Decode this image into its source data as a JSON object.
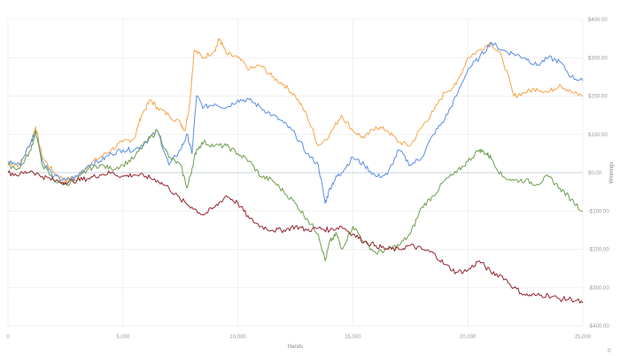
{
  "chart_data": {
    "type": "line",
    "title": "",
    "xlabel": "Hands",
    "ylabel": "Winnings",
    "xlim": [
      0,
      25000
    ],
    "ylim": [
      -400,
      400
    ],
    "x_ticks": [
      0,
      5000,
      10000,
      15000,
      20000,
      25000
    ],
    "x_tick_labels": [
      "0",
      "5,000",
      "10,000",
      "15,000",
      "20,000",
      "25,000"
    ],
    "y_ticks": [
      400,
      300,
      200,
      100,
      0,
      -100,
      -200,
      -300,
      -400
    ],
    "y_tick_labels": [
      "$400.00",
      "$300.00",
      "$200.00",
      "$100.00",
      "$0.00",
      "-$100.00",
      "-$200.00",
      "-$300.00",
      "-$400.00"
    ],
    "grid": true,
    "legend": "none",
    "baseline": 0,
    "credit": "©",
    "series": [
      {
        "color": "#f6a54a",
        "points": [
          [
            0,
            25
          ],
          [
            500,
            20
          ],
          [
            1000,
            80
          ],
          [
            1200,
            120
          ],
          [
            1500,
            40
          ],
          [
            2000,
            0
          ],
          [
            2500,
            -20
          ],
          [
            3000,
            -10
          ],
          [
            3500,
            20
          ],
          [
            4000,
            40
          ],
          [
            4500,
            60
          ],
          [
            5000,
            80
          ],
          [
            5500,
            90
          ],
          [
            5800,
            150
          ],
          [
            6200,
            190
          ],
          [
            6500,
            170
          ],
          [
            7000,
            150
          ],
          [
            7500,
            130
          ],
          [
            7700,
            110
          ],
          [
            7900,
            180
          ],
          [
            8100,
            320
          ],
          [
            8500,
            300
          ],
          [
            9000,
            320
          ],
          [
            9200,
            350
          ],
          [
            9500,
            310
          ],
          [
            10000,
            300
          ],
          [
            10500,
            270
          ],
          [
            11000,
            280
          ],
          [
            11500,
            250
          ],
          [
            12000,
            230
          ],
          [
            12500,
            200
          ],
          [
            13000,
            150
          ],
          [
            13500,
            70
          ],
          [
            14000,
            100
          ],
          [
            14500,
            150
          ],
          [
            15000,
            110
          ],
          [
            15500,
            90
          ],
          [
            16000,
            120
          ],
          [
            16500,
            110
          ],
          [
            17000,
            80
          ],
          [
            17500,
            70
          ],
          [
            18000,
            120
          ],
          [
            18500,
            160
          ],
          [
            19000,
            210
          ],
          [
            19500,
            230
          ],
          [
            20000,
            300
          ],
          [
            20500,
            320
          ],
          [
            21000,
            340
          ],
          [
            21500,
            300
          ],
          [
            22000,
            200
          ],
          [
            22500,
            210
          ],
          [
            23000,
            220
          ],
          [
            23500,
            210
          ],
          [
            24000,
            230
          ],
          [
            24500,
            210
          ],
          [
            25000,
            200
          ]
        ]
      },
      {
        "color": "#5b8ee6",
        "points": [
          [
            0,
            30
          ],
          [
            500,
            20
          ],
          [
            1000,
            80
          ],
          [
            1200,
            110
          ],
          [
            1500,
            30
          ],
          [
            2000,
            -10
          ],
          [
            2500,
            -20
          ],
          [
            3000,
            -10
          ],
          [
            3500,
            20
          ],
          [
            4000,
            30
          ],
          [
            4500,
            50
          ],
          [
            5000,
            60
          ],
          [
            5500,
            60
          ],
          [
            6000,
            80
          ],
          [
            6500,
            110
          ],
          [
            7000,
            20
          ],
          [
            7500,
            60
          ],
          [
            7800,
            100
          ],
          [
            8000,
            50
          ],
          [
            8200,
            200
          ],
          [
            8500,
            170
          ],
          [
            9000,
            180
          ],
          [
            9500,
            170
          ],
          [
            10000,
            190
          ],
          [
            10500,
            190
          ],
          [
            11000,
            170
          ],
          [
            11500,
            150
          ],
          [
            12000,
            130
          ],
          [
            12500,
            100
          ],
          [
            13000,
            50
          ],
          [
            13500,
            20
          ],
          [
            13800,
            -80
          ],
          [
            14000,
            -40
          ],
          [
            14300,
            -10
          ],
          [
            14500,
            0
          ],
          [
            15000,
            40
          ],
          [
            15500,
            20
          ],
          [
            16000,
            -10
          ],
          [
            16500,
            -5
          ],
          [
            17000,
            60
          ],
          [
            17500,
            20
          ],
          [
            18000,
            40
          ],
          [
            18500,
            100
          ],
          [
            19000,
            140
          ],
          [
            19500,
            200
          ],
          [
            20000,
            270
          ],
          [
            20500,
            300
          ],
          [
            21000,
            340
          ],
          [
            21500,
            320
          ],
          [
            22000,
            310
          ],
          [
            22500,
            300
          ],
          [
            23000,
            280
          ],
          [
            23500,
            300
          ],
          [
            24000,
            290
          ],
          [
            24500,
            250
          ],
          [
            25000,
            240
          ]
        ]
      },
      {
        "color": "#6f9e4d",
        "points": [
          [
            0,
            20
          ],
          [
            500,
            10
          ],
          [
            1000,
            60
          ],
          [
            1200,
            110
          ],
          [
            1500,
            20
          ],
          [
            2000,
            -20
          ],
          [
            2500,
            -30
          ],
          [
            3000,
            -20
          ],
          [
            3500,
            10
          ],
          [
            4000,
            20
          ],
          [
            4500,
            10
          ],
          [
            5000,
            20
          ],
          [
            5500,
            40
          ],
          [
            6000,
            80
          ],
          [
            6500,
            110
          ],
          [
            7000,
            40
          ],
          [
            7500,
            20
          ],
          [
            7800,
            -40
          ],
          [
            8000,
            10
          ],
          [
            8200,
            60
          ],
          [
            8500,
            80
          ],
          [
            9000,
            70
          ],
          [
            9500,
            70
          ],
          [
            10000,
            50
          ],
          [
            10500,
            30
          ],
          [
            11000,
            -10
          ],
          [
            11500,
            -20
          ],
          [
            12000,
            -50
          ],
          [
            12500,
            -80
          ],
          [
            13000,
            -120
          ],
          [
            13500,
            -160
          ],
          [
            13800,
            -230
          ],
          [
            14000,
            -180
          ],
          [
            14300,
            -160
          ],
          [
            14500,
            -200
          ],
          [
            15000,
            -140
          ],
          [
            15500,
            -180
          ],
          [
            16000,
            -210
          ],
          [
            16500,
            -200
          ],
          [
            17000,
            -190
          ],
          [
            17500,
            -160
          ],
          [
            18000,
            -90
          ],
          [
            18500,
            -60
          ],
          [
            19000,
            -20
          ],
          [
            19500,
            0
          ],
          [
            20000,
            30
          ],
          [
            20500,
            60
          ],
          [
            20800,
            50
          ],
          [
            21000,
            40
          ],
          [
            21500,
            -10
          ],
          [
            22000,
            -20
          ],
          [
            22500,
            -20
          ],
          [
            23000,
            -30
          ],
          [
            23500,
            -10
          ],
          [
            24000,
            -40
          ],
          [
            24500,
            -70
          ],
          [
            25000,
            -100
          ]
        ]
      },
      {
        "color": "#93262f",
        "points": [
          [
            0,
            0
          ],
          [
            500,
            -5
          ],
          [
            1000,
            5
          ],
          [
            1500,
            -10
          ],
          [
            2000,
            -20
          ],
          [
            2500,
            -25
          ],
          [
            3000,
            -20
          ],
          [
            3500,
            -15
          ],
          [
            4000,
            -5
          ],
          [
            4500,
            0
          ],
          [
            5000,
            -10
          ],
          [
            5500,
            -5
          ],
          [
            6000,
            -10
          ],
          [
            6500,
            -20
          ],
          [
            7000,
            -40
          ],
          [
            7500,
            -70
          ],
          [
            8000,
            -90
          ],
          [
            8500,
            -110
          ],
          [
            9000,
            -90
          ],
          [
            9500,
            -60
          ],
          [
            10000,
            -80
          ],
          [
            10500,
            -120
          ],
          [
            11000,
            -140
          ],
          [
            11500,
            -150
          ],
          [
            12000,
            -150
          ],
          [
            12500,
            -140
          ],
          [
            13000,
            -150
          ],
          [
            13500,
            -145
          ],
          [
            14000,
            -150
          ],
          [
            14500,
            -140
          ],
          [
            15000,
            -160
          ],
          [
            15500,
            -180
          ],
          [
            16000,
            -190
          ],
          [
            16500,
            -200
          ],
          [
            17000,
            -200
          ],
          [
            17500,
            -190
          ],
          [
            18000,
            -200
          ],
          [
            18500,
            -210
          ],
          [
            19000,
            -240
          ],
          [
            19500,
            -260
          ],
          [
            20000,
            -255
          ],
          [
            20500,
            -230
          ],
          [
            21000,
            -260
          ],
          [
            21500,
            -270
          ],
          [
            22000,
            -300
          ],
          [
            22500,
            -320
          ],
          [
            23000,
            -320
          ],
          [
            23500,
            -320
          ],
          [
            24000,
            -330
          ],
          [
            24500,
            -330
          ],
          [
            25000,
            -340
          ]
        ]
      }
    ]
  }
}
